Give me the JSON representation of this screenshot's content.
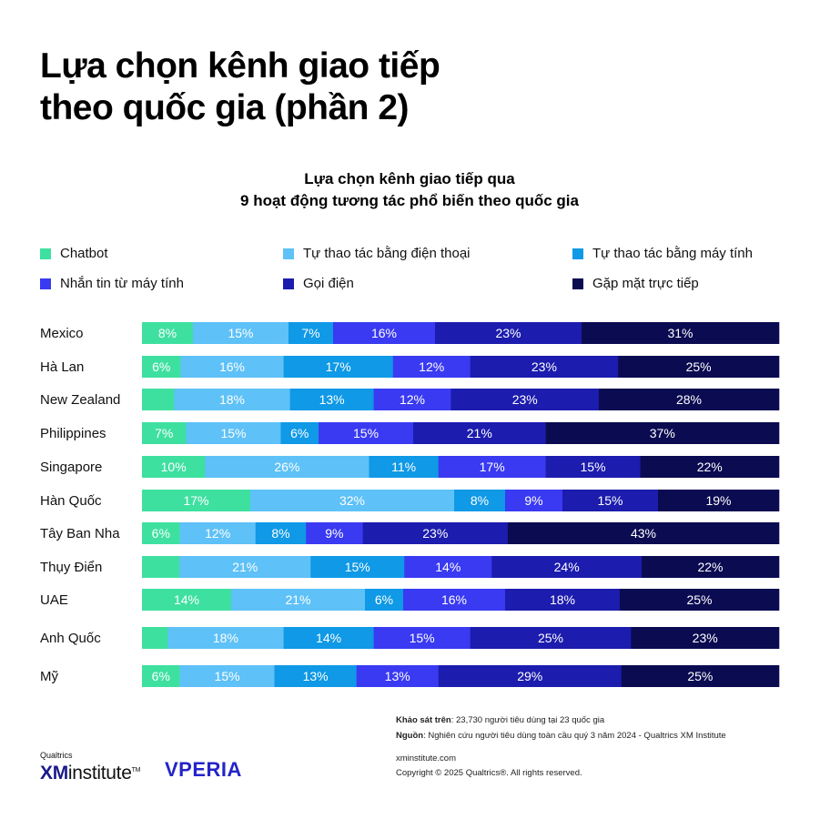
{
  "page": {
    "title_line1": "Lựa chọn kênh giao tiếp",
    "title_line2": "theo quốc gia (phần 2)"
  },
  "chart_data": {
    "type": "bar",
    "orientation": "horizontal-stacked-100",
    "title_line1": "Lựa chọn kênh giao tiếp qua",
    "title_line2": "9 hoạt động tương tác phổ biến theo quốc gia",
    "legend_placement": "top",
    "categories": [
      "Mexico",
      "Hà Lan",
      "New Zealand",
      "Philippines",
      "Singapore",
      "Hàn Quốc",
      "Tây Ban Nha",
      "Thụy Điển",
      "UAE",
      "Anh Quốc",
      "Mỹ"
    ],
    "series": [
      {
        "name": "Chatbot",
        "color": "#3ee0a0",
        "values": [
          8,
          6,
          5,
          7,
          10,
          17,
          6,
          6,
          14,
          4,
          6
        ],
        "labels": [
          "8%",
          "6%",
          "",
          "7%",
          "10%",
          "17%",
          "6%",
          "",
          "14%",
          "",
          "6%"
        ]
      },
      {
        "name": "Tự thao tác bằng điện thoại",
        "color": "#5ec1f7",
        "values": [
          15,
          16,
          18,
          15,
          26,
          32,
          12,
          21,
          21,
          18,
          15
        ],
        "labels": [
          "15%",
          "16%",
          "18%",
          "15%",
          "26%",
          "32%",
          "12%",
          "21%",
          "21%",
          "18%",
          "15%"
        ]
      },
      {
        "name": "Tự thao tác bằng máy tính",
        "color": "#0f99e6",
        "values": [
          7,
          17,
          13,
          6,
          11,
          8,
          8,
          15,
          6,
          14,
          13
        ],
        "labels": [
          "7%",
          "17%",
          "13%",
          "6%",
          "11%",
          "8%",
          "8%",
          "15%",
          "6%",
          "14%",
          "13%"
        ]
      },
      {
        "name": "Nhắn tin từ máy tính",
        "color": "#3a3af2",
        "values": [
          16,
          12,
          12,
          15,
          17,
          9,
          9,
          14,
          16,
          15,
          13
        ],
        "labels": [
          "16%",
          "12%",
          "12%",
          "15%",
          "17%",
          "9%",
          "9%",
          "14%",
          "16%",
          "15%",
          "13%"
        ]
      },
      {
        "name": "Gọi điện",
        "color": "#1c1cae",
        "values": [
          23,
          23,
          23,
          21,
          15,
          15,
          23,
          24,
          18,
          25,
          29
        ],
        "labels": [
          "23%",
          "23%",
          "23%",
          "21%",
          "15%",
          "15%",
          "23%",
          "24%",
          "18%",
          "25%",
          "29%"
        ]
      },
      {
        "name": "Gặp mặt trực tiếp",
        "color": "#0b0b52",
        "values": [
          31,
          25,
          28,
          37,
          22,
          19,
          43,
          22,
          25,
          23,
          25
        ],
        "labels": [
          "31%",
          "25%",
          "28%",
          "37%",
          "22%",
          "19%",
          "43%",
          "22%",
          "25%",
          "23%",
          "25%"
        ]
      }
    ]
  },
  "notes": {
    "survey_label": "Khảo sát trên",
    "survey_text": ": 23,730 người tiêu dùng tại 23 quốc gia",
    "source_label": "Nguồn",
    "source_text": ": Nghiên cứu người tiêu dùng toàn cầu quý 3 năm 2024 - Qualtrics XM Institute"
  },
  "footer": {
    "website": "xminstitute.com",
    "copyright": "Copyright © 2025 Qualtrics®. All rights reserved.",
    "logo_qualtrics_small": "Qualtrics",
    "logo_xm": "XM",
    "logo_institute": "institute",
    "logo_tm": "TM",
    "logo_vperia": "VPERIA"
  }
}
